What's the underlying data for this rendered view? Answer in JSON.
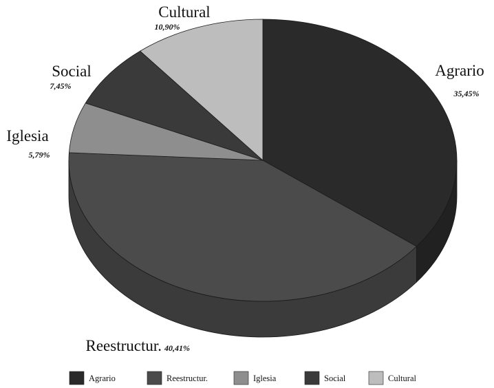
{
  "chart_data": {
    "type": "pie",
    "style": "3d",
    "slices": [
      {
        "label": "Agrario",
        "value": 35.45,
        "value_text": "35,45%",
        "color": "#2a2a2a"
      },
      {
        "label": "Reestructur.",
        "value": 40.41,
        "value_text": "40,41%",
        "color": "#4b4b4b"
      },
      {
        "label": "Iglesia",
        "value": 5.79,
        "value_text": "5,79%",
        "color": "#8e8e8e"
      },
      {
        "label": "Social",
        "value": 7.45,
        "value_text": "7,45%",
        "color": "#3a3a3a"
      },
      {
        "label": "Cultural",
        "value": 10.9,
        "value_text": "10,90%",
        "color": "#bdbdbd"
      }
    ],
    "legend": {
      "placement": "bottom",
      "items": [
        "Agrario",
        "Reestructur.",
        "Iglesia",
        "Social",
        "Cultural"
      ]
    }
  }
}
